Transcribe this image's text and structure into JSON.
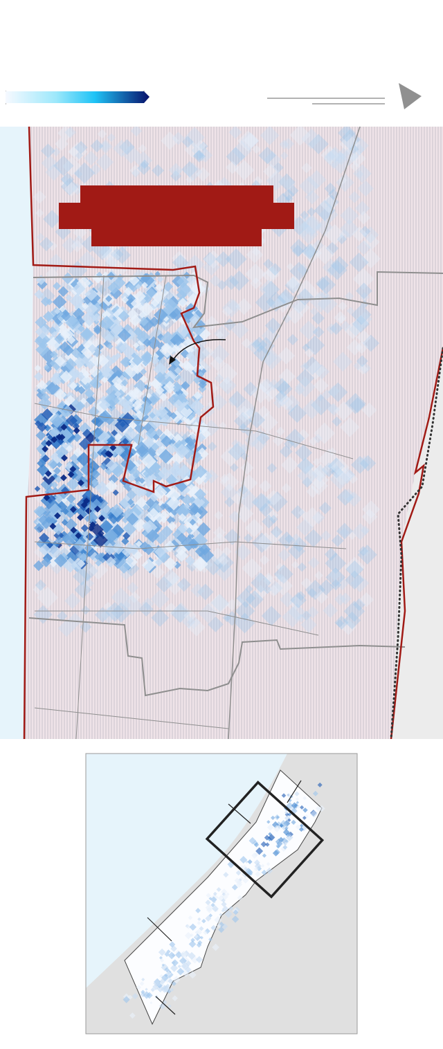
{
  "colors": {
    "sea": "#e6f4fb",
    "land_hatch_bg": "#efe3e8",
    "land_hatch_stripe": "#c9c3cc",
    "outside_land": "#ececec",
    "boundary_red": "#a11a15",
    "roads": "#8e8e8e",
    "redaction_block": "#a11a15",
    "inset_land": "#e0e0e0",
    "inset_frame": "#222222"
  },
  "legend": {
    "gradient": [
      "#f6f9ff",
      "#9de8fb",
      "#1fc3f6",
      "#08106a"
    ],
    "arrow_icon": "triangle-right-icon"
  },
  "density_colors": [
    "#e9f1fb",
    "#c6dcf4",
    "#9cc5ec",
    "#6fa7e0",
    "#3d84cf",
    "#1b58b3",
    "#0a2a86"
  ]
}
